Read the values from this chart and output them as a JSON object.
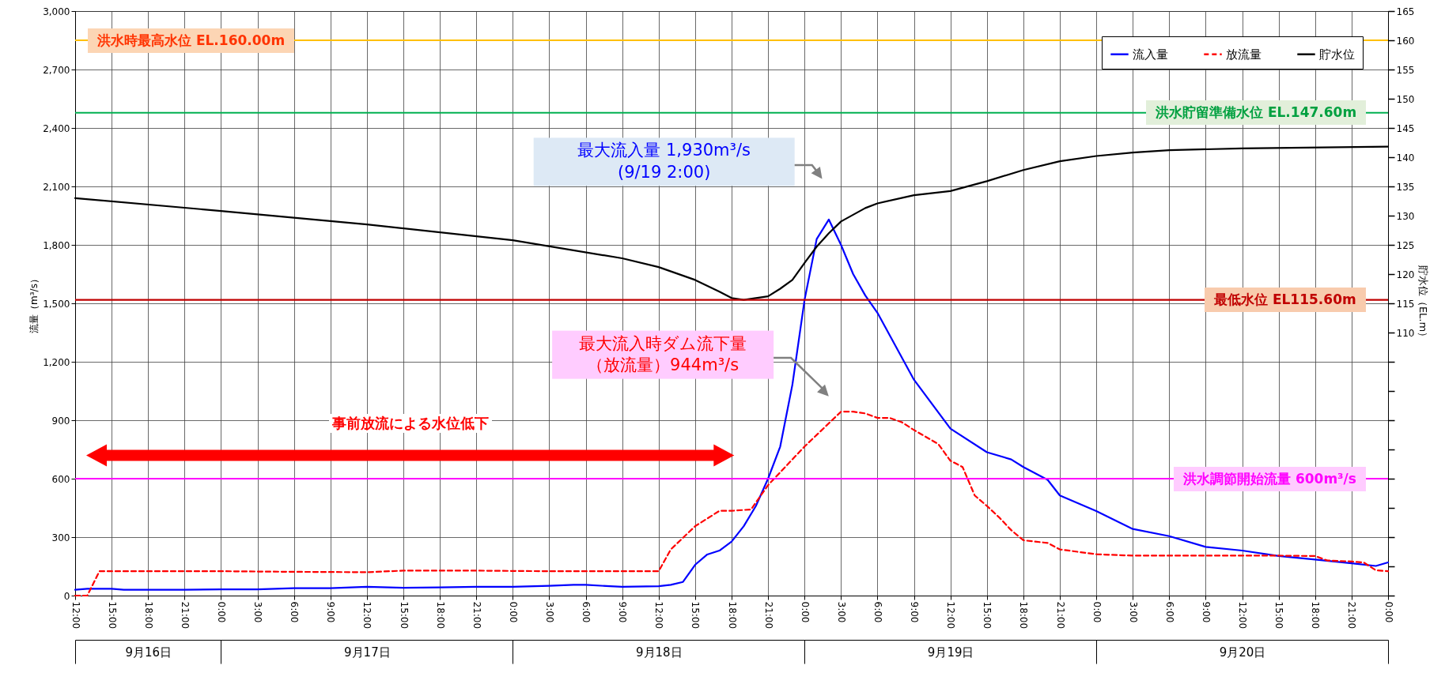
{
  "chart_data": {
    "type": "line",
    "ylabel": "流量（m³/s）",
    "y2label": "貯水位（EL.m）",
    "xlim": [
      "--09-16T12:00",
      "--09-21T00:00"
    ],
    "xticks": [
      {
        "value": "--09-16T12:00",
        "label": "12:00"
      },
      {
        "value": "--09-16T15:00",
        "label": "15:00"
      },
      {
        "value": "--09-16T18:00",
        "label": "18:00"
      },
      {
        "value": "--09-16T21:00",
        "label": "21:00"
      },
      {
        "value": "--09-17T00:00",
        "label": "0:00"
      },
      {
        "value": "--09-17T03:00",
        "label": "3:00"
      },
      {
        "value": "--09-17T06:00",
        "label": "6:00"
      },
      {
        "value": "--09-17T09:00",
        "label": "9:00"
      },
      {
        "value": "--09-17T12:00",
        "label": "12:00"
      },
      {
        "value": "--09-17T15:00",
        "label": "15:00"
      },
      {
        "value": "--09-17T18:00",
        "label": "18:00"
      },
      {
        "value": "--09-17T21:00",
        "label": "21:00"
      },
      {
        "value": "--09-18T00:00",
        "label": "0:00"
      },
      {
        "value": "--09-18T03:00",
        "label": "3:00"
      },
      {
        "value": "--09-18T06:00",
        "label": "6:00"
      },
      {
        "value": "--09-18T09:00",
        "label": "9:00"
      },
      {
        "value": "--09-18T12:00",
        "label": "12:00"
      },
      {
        "value": "--09-18T15:00",
        "label": "15:00"
      },
      {
        "value": "--09-18T18:00",
        "label": "18:00"
      },
      {
        "value": "--09-18T21:00",
        "label": "21:00"
      },
      {
        "value": "--09-19T00:00",
        "label": "0:00"
      },
      {
        "value": "--09-19T03:00",
        "label": "3:00"
      },
      {
        "value": "--09-19T06:00",
        "label": "6:00"
      },
      {
        "value": "--09-19T09:00",
        "label": "9:00"
      },
      {
        "value": "--09-19T12:00",
        "label": "12:00"
      },
      {
        "value": "--09-19T15:00",
        "label": "15:00"
      },
      {
        "value": "--09-19T18:00",
        "label": "18:00"
      },
      {
        "value": "--09-19T21:00",
        "label": "21:00"
      },
      {
        "value": "--09-20T00:00",
        "label": "0:00"
      },
      {
        "value": "--09-20T03:00",
        "label": "3:00"
      },
      {
        "value": "--09-20T06:00",
        "label": "6:00"
      },
      {
        "value": "--09-20T09:00",
        "label": "9:00"
      },
      {
        "value": "--09-20T12:00",
        "label": "12:00"
      },
      {
        "value": "--09-20T15:00",
        "label": "15:00"
      },
      {
        "value": "--09-20T18:00",
        "label": "18:00"
      },
      {
        "value": "--09-20T21:00",
        "label": "21:00"
      },
      {
        "value": "--09-21T00:00",
        "label": "0:00"
      }
    ],
    "x2lim": [
      "--09-16T12:00",
      "--09-21T00:00"
    ],
    "x2ticks": [
      {
        "value": "--09-16T12:00",
        "label": null
      },
      {
        "value": "--09-16T18:00",
        "label": "9月16日"
      },
      {
        "value": "--09-17T00:00",
        "label": null
      },
      {
        "value": "--09-17T12:00",
        "label": "9月17日"
      },
      {
        "value": "--09-18T00:00",
        "label": null
      },
      {
        "value": "--09-18T12:00",
        "label": "9月18日"
      },
      {
        "value": "--09-19T00:00",
        "label": null
      },
      {
        "value": "--09-19T12:00",
        "label": "9月19日"
      },
      {
        "value": "--09-20T00:00",
        "label": null
      },
      {
        "value": "--09-20T12:00",
        "label": "9月20日"
      },
      {
        "value": "--09-21T00:00",
        "label": null
      }
    ],
    "ylim": [
      0,
      3000
    ],
    "yticks": [
      0,
      300,
      600,
      900,
      {
        "value": 1200,
        "label": "1,200"
      },
      {
        "value": 1500,
        "label": "1,500"
      },
      {
        "value": 1800,
        "label": "1,800"
      },
      {
        "value": 2100,
        "label": "2,100"
      },
      {
        "value": 2400,
        "label": "2,400"
      },
      {
        "value": 2700,
        "label": "2,700"
      },
      {
        "value": 3000,
        "label": "3,000"
      }
    ],
    "y2lim": [
      65,
      165
    ],
    "y2ticks": [
      {
        "value": 65,
        "label": null
      },
      {
        "value": 70,
        "label": null
      },
      {
        "value": 75,
        "label": null
      },
      {
        "value": 80,
        "label": null
      },
      {
        "value": 85,
        "label": null
      },
      {
        "value": 90,
        "label": null
      },
      {
        "value": 95,
        "label": null
      },
      {
        "value": 100,
        "label": null
      },
      {
        "value": 105,
        "label": null
      },
      110,
      115,
      120,
      125,
      130,
      135,
      140,
      145,
      150,
      155,
      160,
      165
    ],
    "grid": true,
    "legend": "top right",
    "marker": "none",
    "series": [
      {
        "name": "流入量",
        "color": "#0000ff",
        "line_style": "solid",
        "x": [
          "--09-16T12:00",
          "--09-16T13:00",
          "--09-16T15:00",
          "--09-16T16:00",
          "--09-16T18:00",
          "--09-16T21:00",
          "--09-17T00:00",
          "--09-17T03:00",
          "--09-17T06:00",
          "--09-17T09:00",
          "--09-17T12:00",
          "--09-17T15:00",
          "--09-17T18:00",
          "--09-17T21:00",
          "--09-18T00:00",
          "--09-18T03:00",
          "--09-18T05:00",
          "--09-18T06:00",
          "--09-18T08:00",
          "--09-18T09:00",
          "--09-18T12:00",
          "--09-18T13:00",
          "--09-18T14:00",
          "--09-18T15:00",
          "--09-18T16:00",
          "--09-18T17:00",
          "--09-18T18:00",
          "--09-18T19:00",
          "--09-18T20:00",
          "--09-18T21:00",
          "--09-18T22:00",
          "--09-18T23:00",
          "--09-19T00:00",
          "--09-19T01:00",
          "--09-19T02:00",
          "--09-19T03:00",
          "--09-19T04:00",
          "--09-19T05:00",
          "--09-19T06:00",
          "--09-19T09:00",
          "--09-19T12:00",
          "--09-19T15:00",
          "--09-19T17:00",
          "--09-19T18:00",
          "--09-19T20:00",
          "--09-19T21:00",
          "--09-20T00:00",
          "--09-20T03:00",
          "--09-20T06:00",
          "--09-20T09:00",
          "--09-20T12:00",
          "--09-20T15:00",
          "--09-20T18:00",
          "--09-20T21:00",
          "--09-20T23:00",
          "--09-21T00:00"
        ],
        "values": [
          30,
          35,
          35,
          30,
          30,
          30,
          32,
          32,
          38,
          38,
          45,
          40,
          42,
          45,
          45,
          50,
          55,
          55,
          48,
          45,
          48,
          55,
          70,
          158,
          211,
          231,
          277,
          356,
          460,
          600,
          765,
          1082,
          1517,
          1830,
          1930,
          1800,
          1650,
          1540,
          1451,
          1108,
          857,
          736,
          699,
          660,
          594,
          514,
          434,
          342,
          305,
          250,
          231,
          203,
          185,
          166,
          152,
          170
        ]
      },
      {
        "name": "放流量",
        "color": "#ff0000",
        "line_style": "dashed",
        "x": [
          "--09-16T12:00",
          "--09-16T13:00",
          "--09-16T14:00",
          "--09-16T18:00",
          "--09-17T00:00",
          "--09-17T06:00",
          "--09-17T12:00",
          "--09-17T15:00",
          "--09-17T21:00",
          "--09-18T03:00",
          "--09-18T09:00",
          "--09-18T12:00",
          "--09-18T13:00",
          "--09-18T15:00",
          "--09-18T17:00",
          "--09-18T18:00",
          "--09-18T19:36",
          "--09-18T21:00",
          "--09-19T00:00",
          "--09-19T03:00",
          "--09-19T04:00",
          "--09-19T05:00",
          "--09-19T06:00",
          "--09-19T07:00",
          "--09-19T08:00",
          "--09-19T09:00",
          "--09-19T11:00",
          "--09-19T12:00",
          "--09-19T13:00",
          "--09-19T14:00",
          "--09-19T15:00",
          "--09-19T16:00",
          "--09-19T17:00",
          "--09-19T18:00",
          "--09-19T20:00",
          "--09-19T21:00",
          "--09-20T00:00",
          "--09-20T03:00",
          "--09-20T09:00",
          "--09-20T15:00",
          "--09-20T18:00",
          "--09-20T19:00",
          "--09-20T21:00",
          "--09-20T22:00",
          "--09-20T23:00",
          "--09-21T00:00"
        ],
        "values": [
          0,
          0,
          125,
          125,
          125,
          122,
          120,
          128,
          128,
          125,
          125,
          125,
          237,
          356,
          435,
          435,
          442,
          567,
          765,
          944,
          944,
          935,
          912,
          912,
          890,
          850,
          778,
          692,
          660,
          514,
          460,
          402,
          336,
          284,
          270,
          237,
          212,
          205,
          205,
          205,
          203,
          180,
          175,
          170,
          130,
          125
        ]
      },
      {
        "name": "貯水位",
        "color": "#000000",
        "line_style": "solid",
        "axis": "y2",
        "x": [
          "--09-16T12:00",
          "--09-17T00:00",
          "--09-17T12:00",
          "--09-18T00:00",
          "--09-18T09:00",
          "--09-18T12:00",
          "--09-18T15:00",
          "--09-18T17:00",
          "--09-18T18:00",
          "--09-18T19:00",
          "--09-18T21:00",
          "--09-18T22:00",
          "--09-18T23:00",
          "--09-19T00:00",
          "--09-19T01:00",
          "--09-19T02:00",
          "--09-19T03:00",
          "--09-19T05:00",
          "--09-19T06:00",
          "--09-19T09:00",
          "--09-19T12:00",
          "--09-19T15:00",
          "--09-19T18:00",
          "--09-19T21:00",
          "--09-20T00:00",
          "--09-20T03:00",
          "--09-20T06:00",
          "--09-20T12:00",
          "--09-21T00:00"
        ],
        "values": [
          133.0,
          130.8,
          128.5,
          125.8,
          122.7,
          121.2,
          119.0,
          117.0,
          115.9,
          115.6,
          116.2,
          117.5,
          119.0,
          121.9,
          124.7,
          127.0,
          129.0,
          131.3,
          132.1,
          133.5,
          134.2,
          135.9,
          137.8,
          139.3,
          140.2,
          140.8,
          141.2,
          141.5,
          141.8
        ]
      }
    ],
    "ref_lines": [
      {
        "axis": "y2",
        "value": 160,
        "label": "洪水時最高水位 EL.160.00m",
        "color": "#ffc000"
      },
      {
        "axis": "y2",
        "value": 147.6,
        "label": "洪水貯留準備水位 EL.147.60m",
        "color": "#00b050"
      },
      {
        "axis": "y2",
        "value": 115.6,
        "label": "最低水位 EL115.60m",
        "color": "#c00000"
      },
      {
        "axis": "y",
        "value": 600,
        "label": "洪水調節開始流量 600m³/s",
        "color": "#ff00ff"
      }
    ],
    "annotations": [
      "最大流入量 1,930m³/s\n(9/19 2:00)",
      "最大流入時ダム流下量（放流量）944m³/s",
      "事前放流による水位低下"
    ]
  }
}
